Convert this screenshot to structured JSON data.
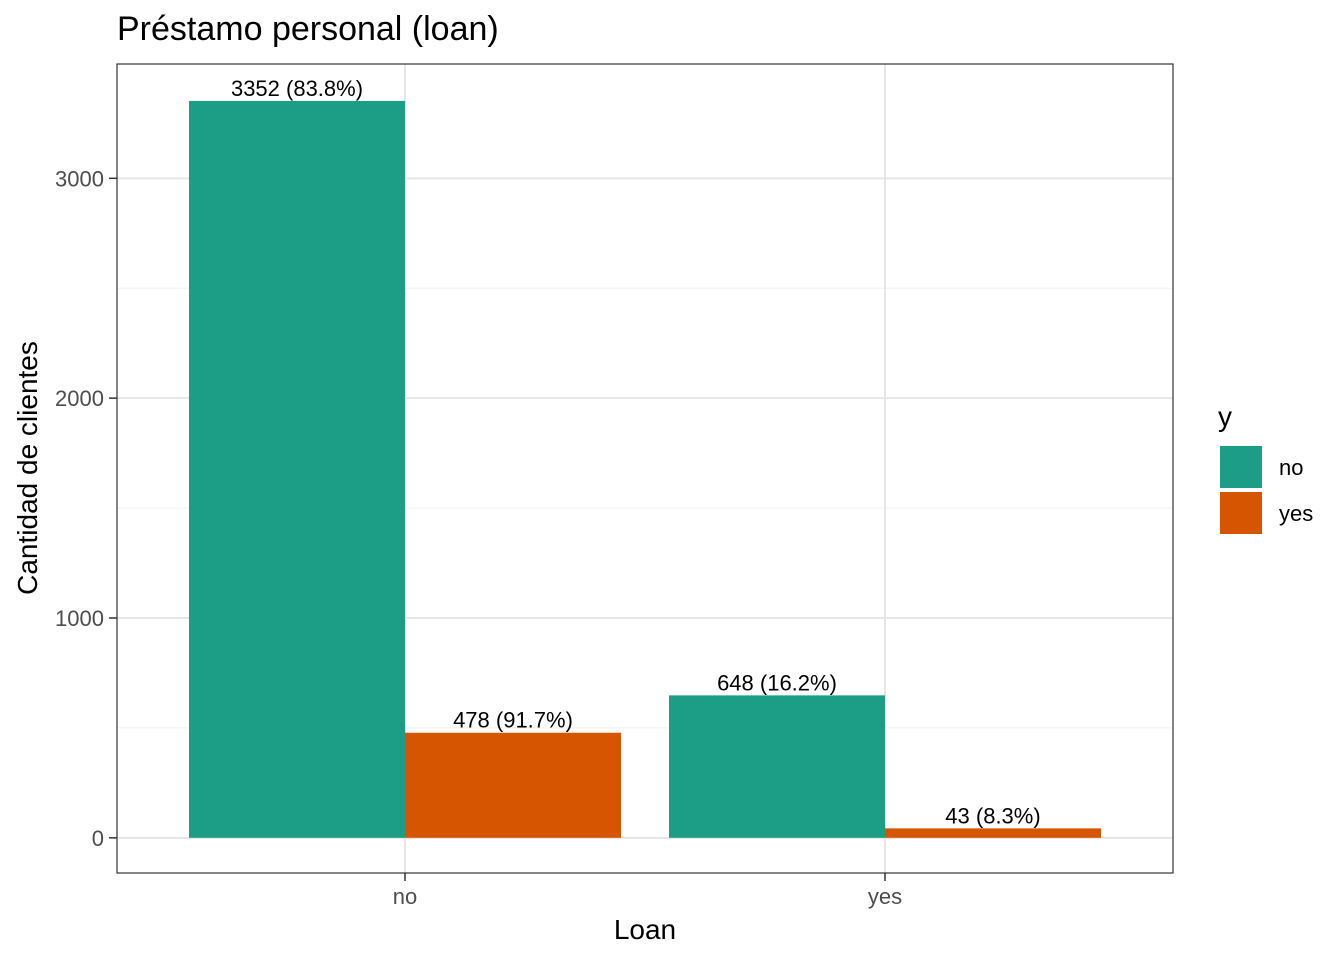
{
  "chart_data": {
    "type": "bar",
    "title": "Préstamo personal (loan)",
    "xlabel": "Loan",
    "ylabel": "Cantidad de clientes",
    "categories": [
      "no",
      "yes"
    ],
    "series": [
      {
        "name": "no",
        "color": "#1b9e85",
        "values": [
          3352,
          648
        ],
        "labels": [
          "3352 (83.8%)",
          "648 (16.2%)"
        ]
      },
      {
        "name": "yes",
        "color": "#d55500",
        "values": [
          478,
          43
        ],
        "labels": [
          "478 (91.7%)",
          "43 (8.3%)"
        ]
      }
    ],
    "ylim": [
      -160,
      3520
    ],
    "yticks": [
      0,
      1000,
      2000,
      3000
    ],
    "ytick_labels": [
      "0",
      "1000",
      "2000",
      "3000"
    ],
    "grid": true,
    "legend": {
      "title": "y",
      "position": "right"
    }
  }
}
